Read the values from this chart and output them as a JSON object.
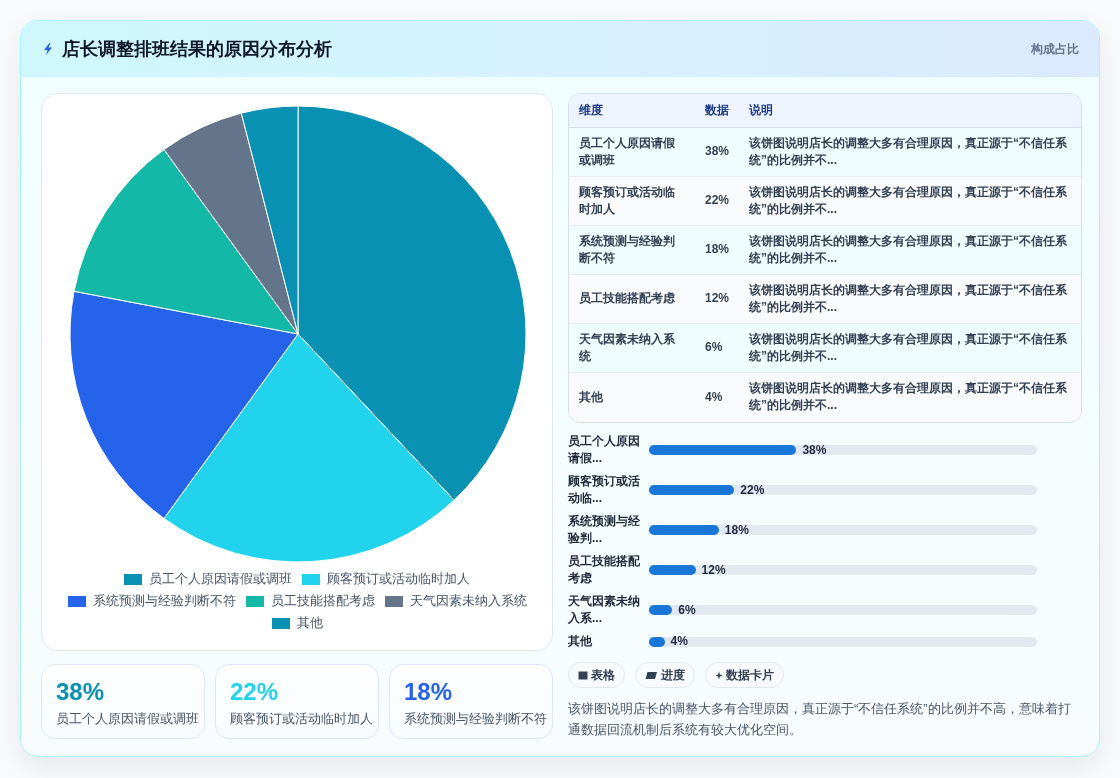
{
  "chart_data": [
    {
      "type": "pie",
      "title": "店长调整排班结果的原因分布分析",
      "categories": [
        "员工个人原因请假或调班",
        "顾客预订或活动临时加人",
        "系统预测与经验判断不符",
        "员工技能搭配考虑",
        "天气因素未纳入系统",
        "其他"
      ],
      "values": [
        38,
        22,
        18,
        12,
        6,
        4
      ],
      "colors": [
        "#0891b2",
        "#22d3ee",
        "#2563eb",
        "#14b8a6",
        "#64748b",
        "#0891b2"
      ],
      "legend": "bottom"
    },
    {
      "type": "other",
      "subtitle": "构成占比",
      "categories": [
        "员工个人原因请假或调班",
        "顾客预订或活动临时加人",
        "系统预测与经验判断不符",
        "员工技能搭配考虑",
        "天气因素未纳入系统",
        "其他"
      ],
      "value_labels": [
        "38%",
        "22%",
        "18%",
        "12%",
        "6%",
        "4%"
      ],
      "annotations": [
        "维度",
        "数据",
        "说明",
        "该饼图说明店长的调整大多有合理原因，真正源于“不信任系统”的比例并不...",
        "该饼图说明店长的调整大多有合理原因，真正源于“不信任系统”的比例并不...",
        "该饼图说明店长的调整大多有合理原因，真正源于“不信任系统”的比例并不...",
        "该饼图说明店长的调整大多有合理原因，真正源于“不信任系统”的比例并不...",
        "该饼图说明店长的调整大多有合理原因，真正源于“不信任系统”的比例并不...",
        "该饼图说明店长的调整大多有合理原因，真正源于“不信任系统”的比例并不..."
      ]
    },
    {
      "type": "bar",
      "orientation": "horizontal",
      "categories": [
        "员工个人原因请假...",
        "顾客预订或活动临...",
        "系统预测与经验判...",
        "员工技能搭配考虑",
        "天气因素未纳入系...",
        "其他"
      ],
      "values": [
        38,
        22,
        18,
        12,
        6,
        4
      ],
      "value_labels": [
        "38%",
        "22%",
        "18%",
        "12%",
        "6%",
        "4%"
      ],
      "color": "#1877d6"
    },
    {
      "type": "other",
      "categories": [
        "员工个人原因请假或调班",
        "顾客预订或活动临时加人",
        "系统预测与经验判断不符"
      ],
      "value_labels": [
        "38%",
        "22%",
        "18%"
      ]
    },
    {
      "type": "other",
      "annotations": [
        "表格",
        "进度",
        "数据卡片",
        "该饼图说明店长的调整大多有合理原因，真正源于“不信任系统”的比例并不高，意味着打通数据回流机制后系统有较大优化空间。"
      ]
    }
  ]
}
